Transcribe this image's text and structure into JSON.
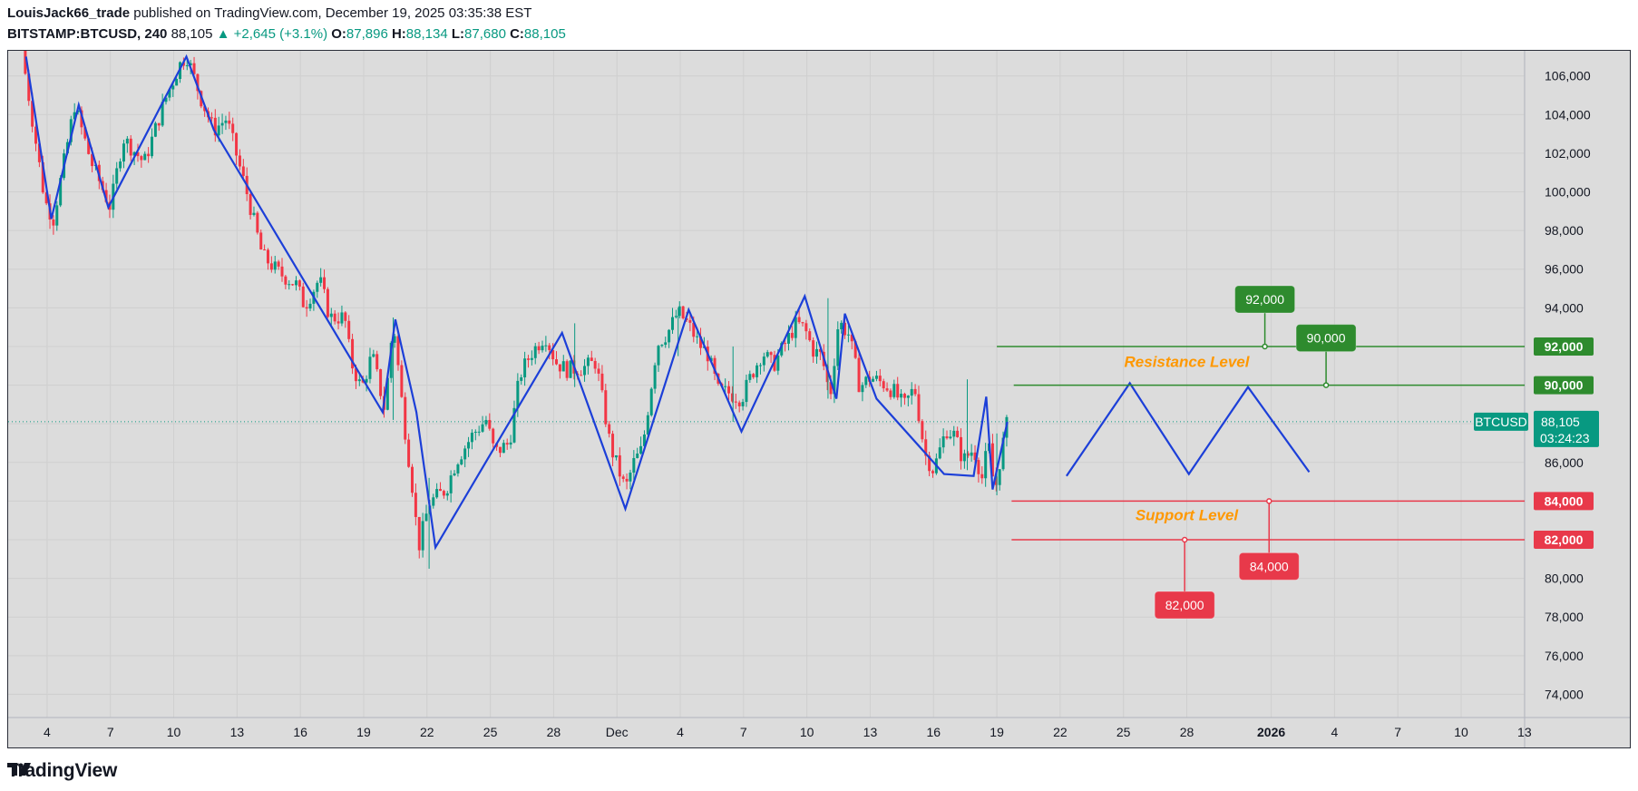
{
  "header": {
    "author": "LouisJack66_trade",
    "published_text": "published on TradingView.com, December 19, 2025 03:35:38 EST",
    "symbol": "BITSTAMP:BTCUSD, 240",
    "price": "88,105",
    "change": "▲ +2,645 (+3.1%)",
    "open_label": "O:",
    "open": "87,896",
    "high_label": "H:",
    "high": "88,134",
    "low_label": "L:",
    "low": "87,680",
    "close_label": "C:",
    "close": "88,105"
  },
  "footer": {
    "brand": "TradingView"
  },
  "colors": {
    "up": "#089981",
    "down": "#f23645",
    "pattern": "#1c3fd8",
    "resistance": "#2e8b2e",
    "support": "#e8394a",
    "annotation": "#ff9800",
    "background": "#dcdcdc",
    "grid": "#cfcfcf"
  },
  "chart_data": {
    "type": "candlestick",
    "title": "BITSTAMP:BTCUSD, 240",
    "y_axis": {
      "min": 72800,
      "max": 107300,
      "ticks": [
        106000,
        104000,
        102000,
        100000,
        98000,
        96000,
        94000,
        92000,
        90000,
        88000,
        86000,
        84000,
        82000,
        80000,
        78000,
        76000,
        74000
      ],
      "tick_labels": [
        "106,000",
        "104,000",
        "102,000",
        "100,000",
        "98,000",
        "96,000",
        "94,000",
        "92,000",
        "90,000",
        "",
        "86,000",
        "84,000",
        "82,000",
        "80,000",
        "78,000",
        "76,000",
        "74,000"
      ]
    },
    "x_axis": {
      "start_day": 2.8,
      "end_day": 49.5,
      "ticks": [
        {
          "day": 4,
          "label": "4"
        },
        {
          "day": 7,
          "label": "7"
        },
        {
          "day": 10,
          "label": "10"
        },
        {
          "day": 13,
          "label": "13"
        },
        {
          "day": 16,
          "label": "16"
        },
        {
          "day": 19,
          "label": "19"
        },
        {
          "day": 22,
          "label": "22"
        },
        {
          "day": 25,
          "label": "25"
        },
        {
          "day": 28,
          "label": "28"
        },
        {
          "day": 31,
          "label": "Dec"
        },
        {
          "day": 34,
          "label": "4"
        },
        {
          "day": 37,
          "label": "7"
        },
        {
          "day": 40,
          "label": "10"
        },
        {
          "day": 43,
          "label": "13"
        },
        {
          "day": 46,
          "label": "16"
        },
        {
          "day": 49,
          "label": "19"
        },
        {
          "day": 52,
          "label": "22"
        },
        {
          "day": 55,
          "label": "25"
        },
        {
          "day": 58,
          "label": "28"
        },
        {
          "day": 62,
          "label": "2026"
        },
        {
          "day": 65,
          "label": "4"
        },
        {
          "day": 68,
          "label": "7"
        },
        {
          "day": 71,
          "label": "10"
        },
        {
          "day": 74,
          "label": "13"
        }
      ]
    },
    "price_path": [
      [
        2.8,
        107300
      ],
      [
        3.9,
        99500
      ],
      [
        4.3,
        98600
      ],
      [
        5.3,
        104500
      ],
      [
        6.1,
        101500
      ],
      [
        7.0,
        99200
      ],
      [
        7.6,
        102800
      ],
      [
        8.6,
        101500
      ],
      [
        9.6,
        104800
      ],
      [
        10.3,
        106600
      ],
      [
        10.6,
        107100
      ],
      [
        11.3,
        104800
      ],
      [
        11.9,
        103200
      ],
      [
        12.5,
        103800
      ],
      [
        13.0,
        101800
      ],
      [
        13.5,
        99800
      ],
      [
        14.2,
        96700
      ],
      [
        15.0,
        95800
      ],
      [
        15.8,
        95200
      ],
      [
        16.2,
        94100
      ],
      [
        16.9,
        95500
      ],
      [
        17.4,
        93500
      ],
      [
        18.1,
        93500
      ],
      [
        18.4,
        91200
      ],
      [
        18.9,
        89800
      ],
      [
        19.4,
        91600
      ],
      [
        20.0,
        88700
      ],
      [
        20.4,
        93400
      ],
      [
        20.9,
        88200
      ],
      [
        21.3,
        84800
      ],
      [
        21.6,
        81600
      ],
      [
        22.1,
        83900
      ],
      [
        22.9,
        84600
      ],
      [
        23.4,
        86100
      ],
      [
        24.2,
        87500
      ],
      [
        24.8,
        88200
      ],
      [
        25.2,
        86500
      ],
      [
        25.9,
        87000
      ],
      [
        26.4,
        90500
      ],
      [
        26.9,
        91600
      ],
      [
        27.6,
        92600
      ],
      [
        28.1,
        91200
      ],
      [
        28.6,
        90800
      ],
      [
        29.4,
        90900
      ],
      [
        30.0,
        91200
      ],
      [
        30.7,
        86800
      ],
      [
        31.4,
        84600
      ],
      [
        31.8,
        86000
      ],
      [
        32.2,
        86700
      ],
      [
        32.9,
        92100
      ],
      [
        33.4,
        92700
      ],
      [
        33.9,
        93800
      ],
      [
        34.4,
        93100
      ],
      [
        34.9,
        92100
      ],
      [
        35.3,
        91600
      ],
      [
        35.8,
        89700
      ],
      [
        36.3,
        89600
      ],
      [
        36.9,
        89300
      ],
      [
        37.4,
        90600
      ],
      [
        37.9,
        91700
      ],
      [
        38.4,
        91000
      ],
      [
        39.0,
        92200
      ],
      [
        39.5,
        93200
      ],
      [
        39.9,
        92900
      ],
      [
        40.3,
        91800
      ],
      [
        40.7,
        91500
      ],
      [
        41.1,
        89400
      ],
      [
        41.5,
        93300
      ],
      [
        42.0,
        92600
      ],
      [
        42.5,
        89900
      ],
      [
        43.0,
        90400
      ],
      [
        43.6,
        90100
      ],
      [
        44.1,
        89700
      ],
      [
        44.6,
        88900
      ],
      [
        45.1,
        89900
      ],
      [
        45.6,
        86400
      ],
      [
        46.0,
        85600
      ],
      [
        46.6,
        87700
      ],
      [
        47.0,
        87400
      ],
      [
        47.4,
        86100
      ],
      [
        47.9,
        86700
      ],
      [
        48.3,
        85200
      ],
      [
        48.6,
        87000
      ],
      [
        48.9,
        84400
      ],
      [
        49.2,
        86500
      ],
      [
        49.5,
        88105
      ]
    ],
    "spikes": [
      [
        20.4,
        93500,
        88200
      ],
      [
        22.1,
        85200,
        80500
      ],
      [
        29.0,
        93200,
        89900
      ],
      [
        33.9,
        94000,
        91500
      ],
      [
        36.5,
        92000,
        88100
      ],
      [
        41.0,
        94500,
        89300
      ],
      [
        47.6,
        90300,
        85600
      ],
      [
        49.0,
        87500,
        84300
      ]
    ],
    "pattern_past": [
      [
        3.0,
        107000
      ],
      [
        4.2,
        98600
      ],
      [
        5.5,
        104500
      ],
      [
        6.9,
        99200
      ],
      [
        10.6,
        107000
      ],
      [
        11.9,
        103200
      ],
      [
        19.9,
        88600
      ],
      [
        20.5,
        93400
      ],
      [
        21.5,
        88600
      ],
      [
        22.4,
        81600
      ],
      [
        28.4,
        92700
      ],
      [
        31.4,
        83600
      ],
      [
        34.4,
        93900
      ],
      [
        36.9,
        87600
      ],
      [
        39.9,
        94600
      ],
      [
        41.4,
        89300
      ],
      [
        41.8,
        93700
      ],
      [
        43.3,
        89300
      ],
      [
        46.5,
        85400
      ],
      [
        47.9,
        85300
      ],
      [
        48.5,
        89400
      ],
      [
        48.8,
        84600
      ],
      [
        49.5,
        88100
      ]
    ],
    "pattern_projection": [
      [
        52.3,
        85300
      ],
      [
        55.3,
        90100
      ],
      [
        58.1,
        85400
      ],
      [
        60.9,
        89900
      ],
      [
        63.8,
        85500
      ]
    ],
    "levels": [
      {
        "name": "resistance_upper",
        "value": 92000,
        "label": "92,000",
        "start_day": 49.0,
        "color": "resistance"
      },
      {
        "name": "resistance_lower",
        "value": 90000,
        "label": "90,000",
        "start_day": 49.8,
        "color": "resistance"
      },
      {
        "name": "support_upper",
        "value": 84000,
        "label": "84,000",
        "start_day": 49.7,
        "color": "support"
      },
      {
        "name": "support_lower",
        "value": 82000,
        "label": "82,000",
        "start_day": 49.7,
        "color": "support"
      }
    ],
    "level_tags": [
      {
        "value": 92000,
        "text": "92,000",
        "anchor_day": 61.7,
        "offset": "above",
        "color": "resistance"
      },
      {
        "value": 90000,
        "text": "90,000",
        "anchor_day": 64.6,
        "offset": "above",
        "color": "resistance"
      },
      {
        "value": 84000,
        "text": "84,000",
        "anchor_day": 61.9,
        "offset": "below",
        "color": "support"
      },
      {
        "value": 82000,
        "text": "82,000",
        "anchor_day": 57.9,
        "offset": "below",
        "color": "support"
      }
    ],
    "annotations": [
      {
        "text": "Resistance Level",
        "value": 90950,
        "center_day": 58.0
      },
      {
        "text": "Support Level",
        "value": 83000,
        "center_day": 58.0
      }
    ],
    "current": {
      "symbol": "BTCUSD",
      "value": 88105,
      "price_label": "88,105",
      "countdown": "03:24:23"
    }
  }
}
